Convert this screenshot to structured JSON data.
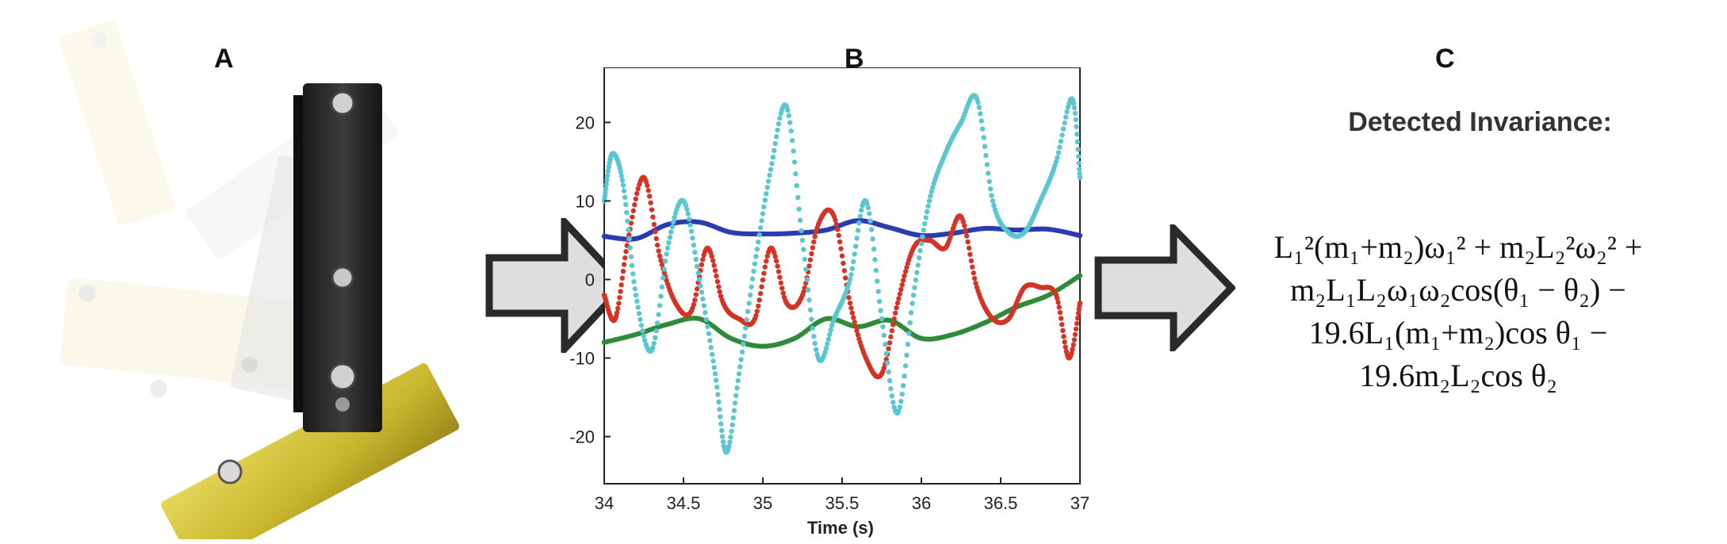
{
  "panels": {
    "a": {
      "label": "A"
    },
    "b": {
      "label": "B"
    },
    "c": {
      "label": "C",
      "heading": "Detected Invariance:"
    }
  },
  "equation": {
    "line1": "L₁²(m₁+m₂)ω₁² + m₂L₂²ω₂² +",
    "line2": "m₂L₁L₂ω₁ω₂cos(θ₁ − θ₂) −",
    "line3": "19.6L₁(m₁+m₂)cos θ₁ −",
    "line4": "19.6m₂L₂cos θ₂"
  },
  "chart_data": {
    "type": "scatter",
    "title": "",
    "xlabel": "Time (s)",
    "ylabel": "",
    "xlim": [
      34,
      37
    ],
    "ylim": [
      -26,
      27
    ],
    "xticks": [
      "34",
      "34.5",
      "35",
      "35.5",
      "36",
      "36.5",
      "37"
    ],
    "yticks": [
      "20",
      "10",
      "0",
      "-10",
      "-20"
    ],
    "grid": false,
    "legend": "none",
    "series": [
      {
        "color": "#2b3bb0",
        "x": [
          34.0,
          34.2,
          34.4,
          34.6,
          34.8,
          35.0,
          35.2,
          35.4,
          35.6,
          35.8,
          36.0,
          36.2,
          36.4,
          36.6,
          36.8,
          37.0
        ],
        "y": [
          5.5,
          5.2,
          7.0,
          7.3,
          6.0,
          5.8,
          5.9,
          6.3,
          7.5,
          6.6,
          5.6,
          5.9,
          6.5,
          6.3,
          6.4,
          5.6
        ]
      },
      {
        "color": "#2e8b3a",
        "x": [
          34.0,
          34.2,
          34.4,
          34.6,
          34.8,
          35.0,
          35.2,
          35.4,
          35.6,
          35.8,
          36.0,
          36.2,
          36.4,
          36.6,
          36.8,
          37.0
        ],
        "y": [
          -8.0,
          -7.0,
          -5.7,
          -5.0,
          -7.5,
          -8.5,
          -7.5,
          -5.0,
          -6.0,
          -5.2,
          -7.5,
          -7.0,
          -5.5,
          -3.5,
          -2.0,
          0.5
        ]
      },
      {
        "color": "#d43326",
        "x": [
          34.0,
          34.07,
          34.15,
          34.25,
          34.35,
          34.45,
          34.55,
          34.65,
          34.75,
          34.85,
          34.95,
          35.05,
          35.15,
          35.25,
          35.35,
          35.45,
          35.55,
          35.65,
          35.75,
          35.85,
          35.95,
          36.05,
          36.15,
          36.25,
          36.35,
          36.45,
          36.55,
          36.65,
          36.75,
          36.85,
          36.93,
          37.0
        ],
        "y": [
          -2,
          -5,
          5,
          13,
          3,
          -3,
          -4,
          4,
          -3,
          -5,
          -5,
          4,
          -3,
          -2,
          7,
          8,
          -3,
          -10,
          -12,
          -3,
          4,
          5,
          4,
          8,
          -1,
          -5,
          -5,
          -1,
          -1,
          -2,
          -10,
          -3
        ]
      },
      {
        "color": "#5bc6d0",
        "x": [
          34.0,
          34.05,
          34.12,
          34.2,
          34.3,
          34.4,
          34.5,
          34.6,
          34.7,
          34.77,
          34.85,
          34.95,
          35.05,
          35.15,
          35.25,
          35.35,
          35.45,
          35.55,
          35.65,
          35.75,
          35.85,
          35.95,
          36.05,
          36.15,
          36.25,
          36.35,
          36.45,
          36.55,
          36.65,
          36.75,
          36.85,
          36.95,
          37.0
        ],
        "y": [
          10,
          16,
          12,
          -2,
          -9,
          4,
          10,
          0,
          -12,
          -22,
          -12,
          2,
          14,
          22,
          5,
          -10,
          -5,
          0,
          10,
          -5,
          -17,
          -2,
          10,
          16,
          20,
          23,
          10,
          6,
          6,
          10,
          15,
          23,
          13
        ]
      }
    ]
  }
}
